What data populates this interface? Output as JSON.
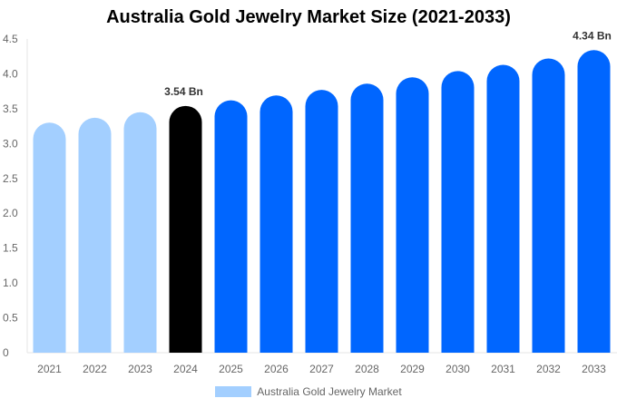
{
  "chart_data": {
    "type": "bar",
    "title": "Australia Gold Jewelry Market Size (2021-2033)",
    "categories": [
      "2021",
      "2022",
      "2023",
      "2024",
      "2025",
      "2026",
      "2027",
      "2028",
      "2029",
      "2030",
      "2031",
      "2032",
      "2033"
    ],
    "series": [
      {
        "name": "Australia Gold Jewelry Market",
        "values": [
          3.3,
          3.37,
          3.45,
          3.54,
          3.62,
          3.69,
          3.77,
          3.86,
          3.95,
          4.04,
          4.13,
          4.22,
          4.34
        ]
      }
    ],
    "data_labels": {
      "2024": "3.54 Bn",
      "2033": "4.34 Bn"
    },
    "yticks": [
      "0",
      "0.5",
      "1.0",
      "1.5",
      "2.0",
      "2.5",
      "3.0",
      "3.5",
      "4.0",
      "4.5"
    ],
    "ylim": [
      0,
      4.5
    ],
    "grid": false,
    "legend": "bottom",
    "colors": {
      "historical": "#a3cfff",
      "current": "#000000",
      "forecast": "#0066ff"
    }
  }
}
